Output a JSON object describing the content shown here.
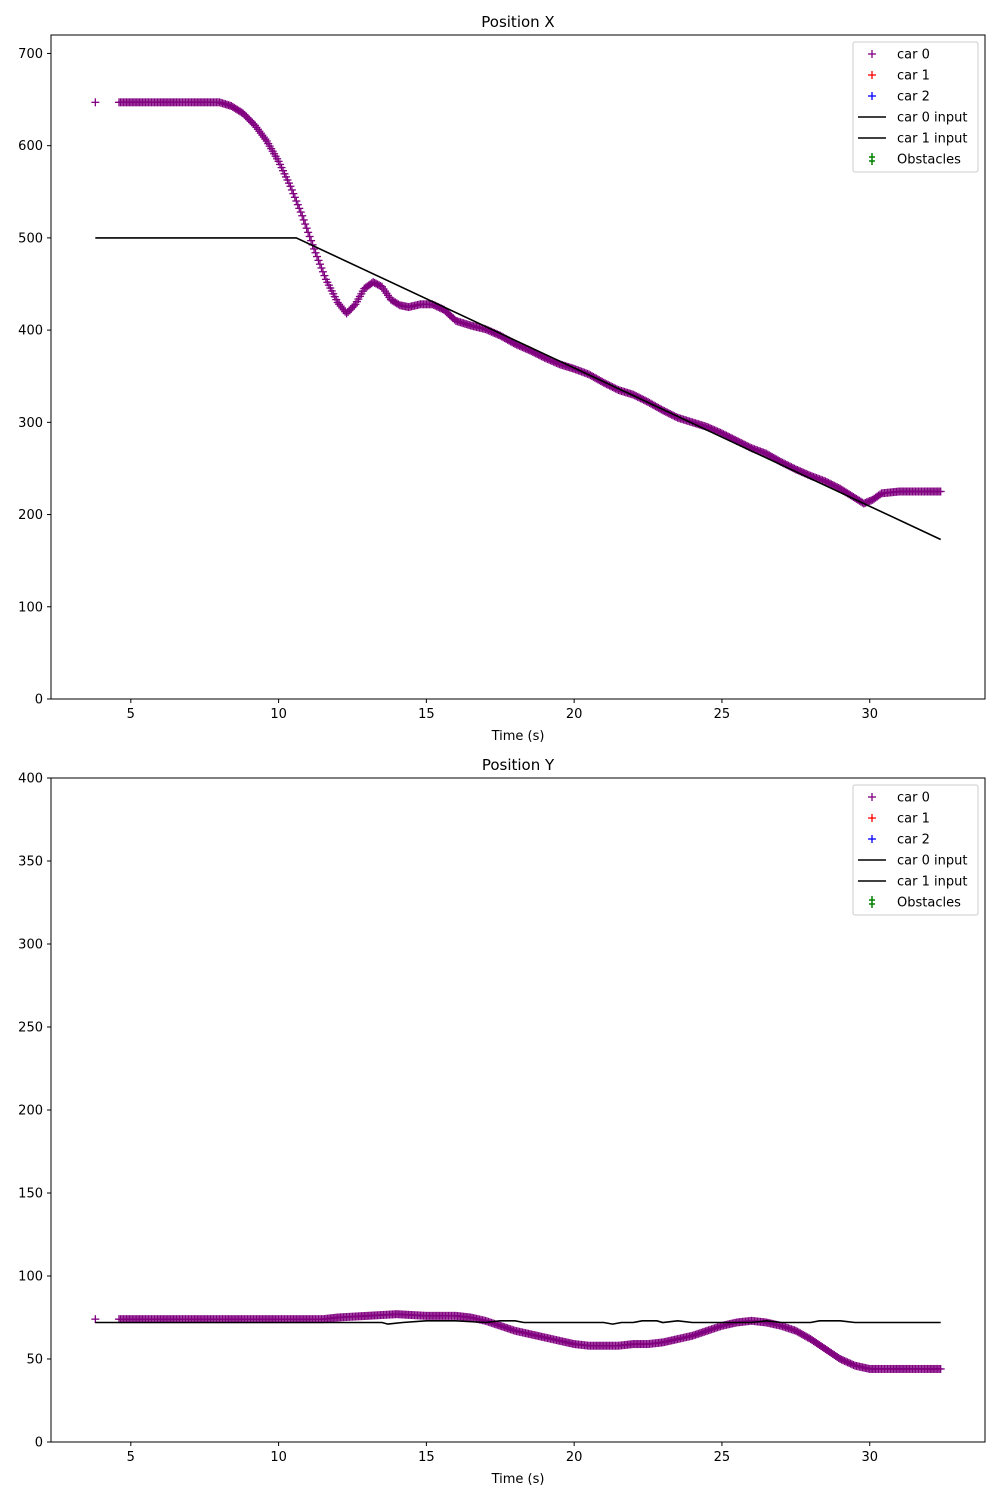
{
  "chart_data": [
    {
      "type": "scatter",
      "title": "Position X",
      "xlabel": "Time (s)",
      "ylabel": "",
      "xlim": [
        2.3,
        33.9
      ],
      "ylim": [
        0,
        720
      ],
      "xticks": [
        5,
        10,
        15,
        20,
        25,
        30
      ],
      "yticks": [
        0,
        100,
        200,
        300,
        400,
        500,
        600,
        700
      ],
      "grid": false,
      "legend_position": "top-right",
      "legend": [
        {
          "label": "car 0",
          "kind": "plus",
          "color": "#800080"
        },
        {
          "label": "car 1",
          "kind": "plus",
          "color": "#ff0000"
        },
        {
          "label": "car 2",
          "kind": "plus",
          "color": "#0000ff"
        },
        {
          "label": "car 0 input",
          "kind": "line",
          "color": "#000000"
        },
        {
          "label": "car 1 input",
          "kind": "line",
          "color": "#000000"
        },
        {
          "label": "Obstacles",
          "kind": "errorbar",
          "color": "#008000"
        }
      ],
      "series": [
        {
          "name": "car 0",
          "kind": "plus",
          "color": "#800080",
          "isolated_points": [
            [
              3.8,
              647
            ]
          ],
          "x": [
            4.6,
            5.0,
            6.0,
            7.0,
            8.0,
            8.4,
            8.8,
            9.2,
            9.6,
            10.0,
            10.4,
            10.8,
            11.2,
            11.6,
            12.0,
            12.3,
            12.6,
            12.9,
            13.2,
            13.5,
            13.8,
            14.1,
            14.4,
            14.8,
            15.2,
            15.6,
            16.0,
            16.5,
            17.0,
            17.5,
            18.0,
            18.5,
            19.0,
            19.5,
            20.0,
            20.5,
            21.0,
            21.5,
            22.0,
            22.5,
            23.0,
            23.5,
            24.0,
            24.5,
            25.0,
            25.5,
            26.0,
            26.5,
            27.0,
            27.5,
            28.0,
            28.5,
            29.0,
            29.5,
            29.8,
            30.1,
            30.4,
            31.0,
            31.5,
            32.0,
            32.4
          ],
          "y": [
            647,
            647,
            647,
            647,
            647,
            643,
            635,
            622,
            605,
            583,
            556,
            524,
            488,
            455,
            430,
            418,
            428,
            445,
            452,
            447,
            433,
            427,
            425,
            428,
            428,
            422,
            410,
            405,
            401,
            394,
            385,
            378,
            370,
            363,
            358,
            352,
            343,
            335,
            330,
            322,
            313,
            305,
            300,
            295,
            288,
            280,
            272,
            266,
            257,
            249,
            242,
            236,
            228,
            218,
            212,
            216,
            223,
            225,
            225,
            225,
            225
          ]
        },
        {
          "name": "car 0 input",
          "kind": "line",
          "color": "#000000",
          "x": [
            3.8,
            10.6,
            32.4
          ],
          "y": [
            500,
            500,
            173
          ]
        }
      ]
    },
    {
      "type": "scatter",
      "title": "Position Y",
      "xlabel": "Time (s)",
      "ylabel": "",
      "xlim": [
        2.3,
        33.9
      ],
      "ylim": [
        0,
        400
      ],
      "xticks": [
        5,
        10,
        15,
        20,
        25,
        30
      ],
      "yticks": [
        0,
        50,
        100,
        150,
        200,
        250,
        300,
        350,
        400
      ],
      "grid": false,
      "legend_position": "top-right",
      "legend": [
        {
          "label": "car 0",
          "kind": "plus",
          "color": "#800080"
        },
        {
          "label": "car 1",
          "kind": "plus",
          "color": "#ff0000"
        },
        {
          "label": "car 2",
          "kind": "plus",
          "color": "#0000ff"
        },
        {
          "label": "car 0 input",
          "kind": "line",
          "color": "#000000"
        },
        {
          "label": "car 1 input",
          "kind": "line",
          "color": "#000000"
        },
        {
          "label": "Obstacles",
          "kind": "errorbar",
          "color": "#008000"
        }
      ],
      "series": [
        {
          "name": "car 0",
          "kind": "plus",
          "color": "#800080",
          "isolated_points": [
            [
              3.8,
              74
            ]
          ],
          "x": [
            4.6,
            6.0,
            8.0,
            10.0,
            11.5,
            12.0,
            13.0,
            14.0,
            15.0,
            16.0,
            16.5,
            17.0,
            17.5,
            18.0,
            18.5,
            19.0,
            19.5,
            20.0,
            20.5,
            21.0,
            21.5,
            22.0,
            22.5,
            23.0,
            23.5,
            24.0,
            24.5,
            25.0,
            25.5,
            26.0,
            26.5,
            27.0,
            27.5,
            28.0,
            28.5,
            29.0,
            29.5,
            30.0,
            31.0,
            32.0,
            32.4
          ],
          "y": [
            74,
            74,
            74,
            74,
            74,
            75,
            76,
            77,
            76,
            76,
            75,
            73,
            70,
            67,
            65,
            63,
            61,
            59,
            58,
            58,
            58,
            59,
            59,
            60,
            62,
            64,
            67,
            70,
            72,
            73,
            72,
            70,
            67,
            62,
            56,
            50,
            46,
            44,
            44,
            44,
            44
          ]
        },
        {
          "name": "car 0 input",
          "kind": "line",
          "color": "#000000",
          "x": [
            3.8,
            8.0,
            12.0,
            13.5,
            13.7,
            14.2,
            15.0,
            16.0,
            17.0,
            17.5,
            18.0,
            18.3,
            21.0,
            21.3,
            21.6,
            22.0,
            22.3,
            22.8,
            23.0,
            23.5,
            24.0,
            26.0,
            26.5,
            27.0,
            28.0,
            28.3,
            29.0,
            29.5,
            29.8,
            32.4
          ],
          "y": [
            72,
            72,
            72,
            72,
            71,
            72,
            73,
            73,
            72,
            73,
            73,
            72,
            72,
            71,
            72,
            72,
            73,
            73,
            72,
            73,
            72,
            72,
            73,
            72,
            72,
            73,
            73,
            72,
            72,
            72
          ]
        }
      ]
    }
  ]
}
